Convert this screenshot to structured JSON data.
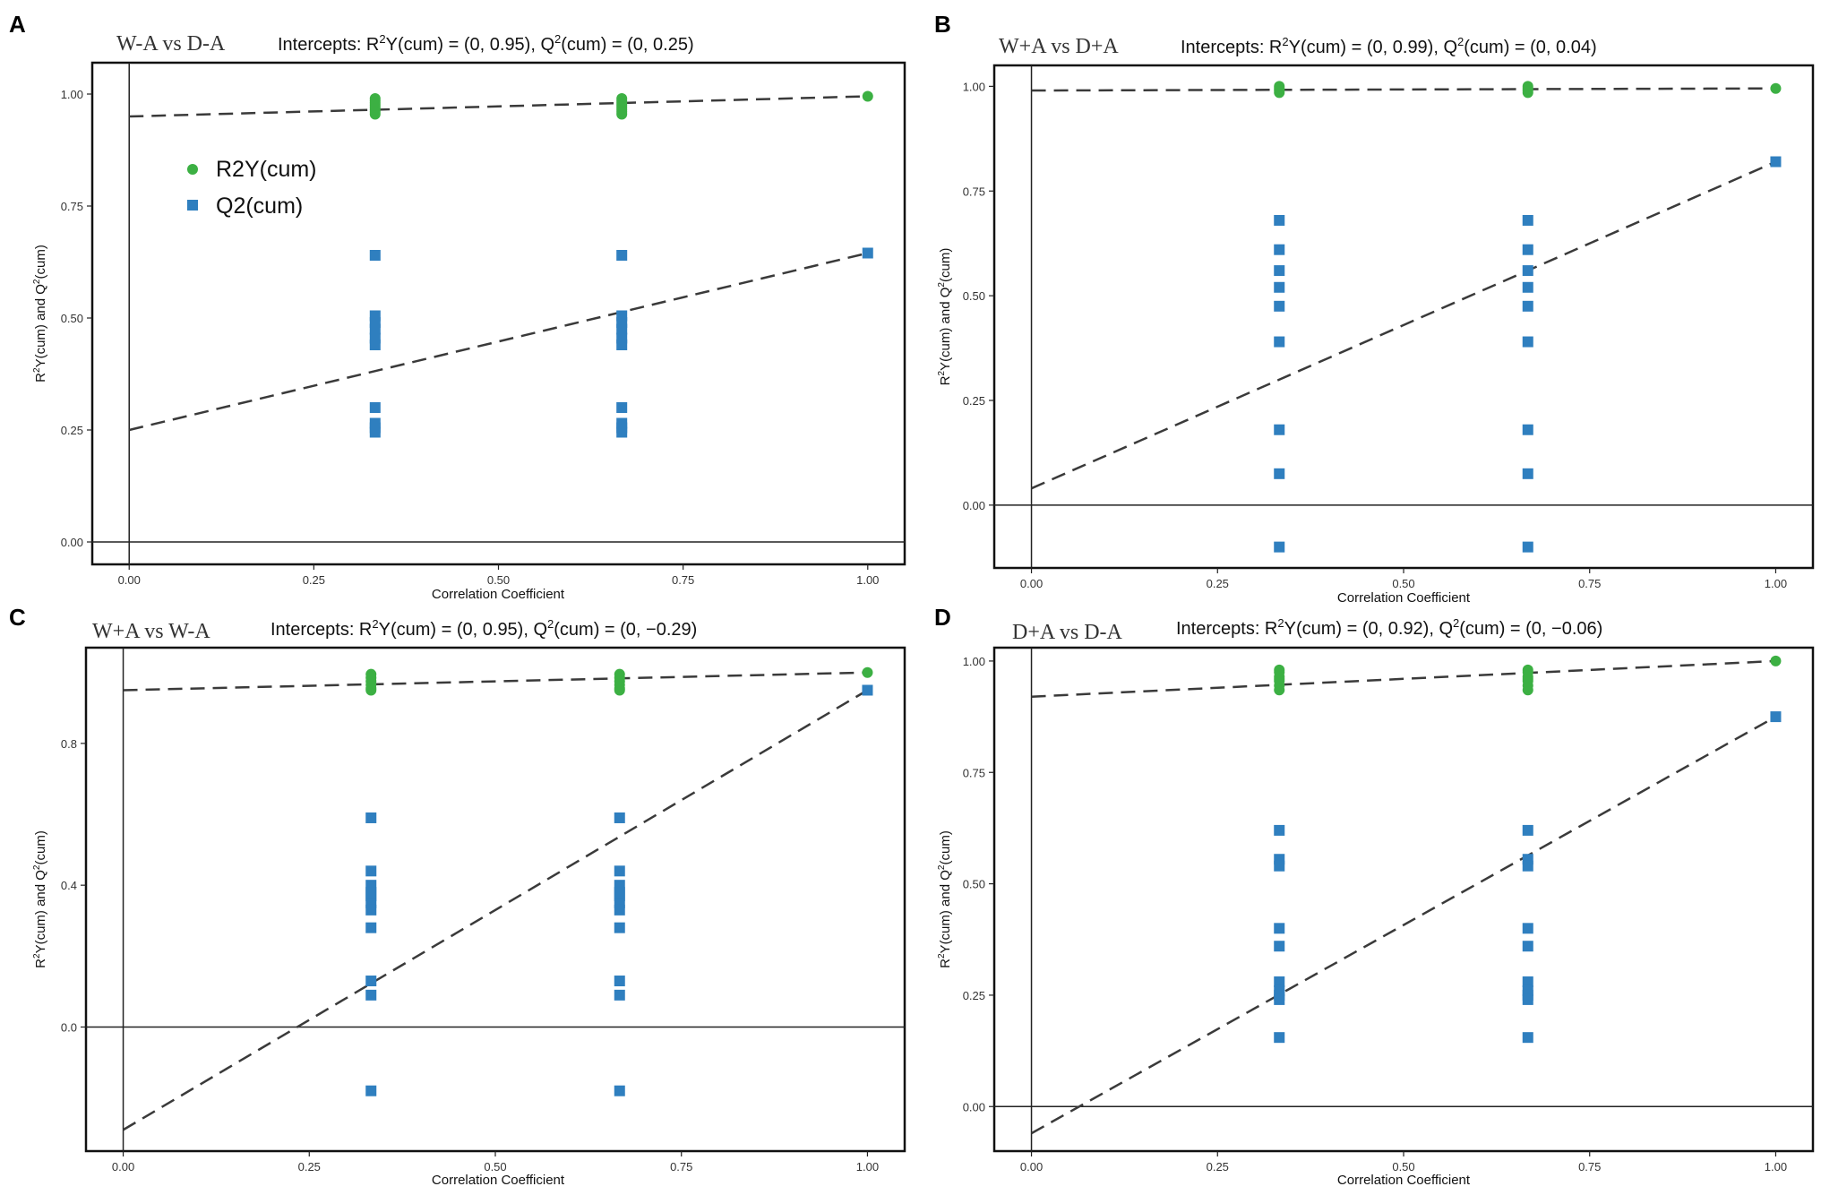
{
  "legend": {
    "r2_label": "R2Y(cum)",
    "q2_label": "Q2(cum)",
    "r2_color": "#3cb043",
    "q2_color": "#2f7fbf"
  },
  "chart_data": [
    {
      "type": "scatter",
      "panel_letter": "A",
      "title": "W-A vs D-A",
      "intercepts_prefix": "Intercepts: R",
      "intercepts_mid": "Y(cum) = (0, 0.95), Q",
      "intercepts_suffix": "(cum) = (0, 0.25)",
      "sup": "2",
      "xlabel": "Correlation Coefficient",
      "ylabel_prefix": "R",
      "ylabel_mid": "Y(cum) and Q",
      "ylabel_suffix": "(cum)",
      "xlim": [
        -0.05,
        1.05
      ],
      "ylim": [
        -0.05,
        1.07
      ],
      "xticks": [
        0,
        0.25,
        0.5,
        0.75,
        1
      ],
      "xtick_labels": [
        "0.00",
        "0.25",
        "0.50",
        "0.75",
        "1.00"
      ],
      "yticks": [
        0,
        0.25,
        0.5,
        0.75,
        1
      ],
      "ytick_labels": [
        "0.00",
        "0.25",
        "0.50",
        "0.75",
        "1.00"
      ],
      "show_legend": true,
      "series": [
        {
          "name": "R2Y(cum)",
          "x": [
            0.333,
            0.333,
            0.333,
            0.333,
            0.333,
            0.333,
            0.333,
            0.333,
            0.667,
            0.667,
            0.667,
            0.667,
            0.667,
            0.667,
            0.667,
            0.667,
            1.0
          ],
          "y": [
            0.955,
            0.96,
            0.965,
            0.97,
            0.975,
            0.98,
            0.985,
            0.99,
            0.955,
            0.96,
            0.965,
            0.97,
            0.975,
            0.98,
            0.985,
            0.99,
            0.995
          ]
        },
        {
          "name": "Q2(cum)",
          "x": [
            0.333,
            0.333,
            0.333,
            0.333,
            0.333,
            0.333,
            0.333,
            0.333,
            0.333,
            0.333,
            0.667,
            0.667,
            0.667,
            0.667,
            0.667,
            0.667,
            0.667,
            0.667,
            0.667,
            0.667,
            1.0
          ],
          "y": [
            0.64,
            0.505,
            0.49,
            0.475,
            0.455,
            0.44,
            0.3,
            0.265,
            0.255,
            0.245,
            0.64,
            0.505,
            0.49,
            0.475,
            0.455,
            0.44,
            0.3,
            0.265,
            0.255,
            0.245,
            0.645
          ]
        }
      ],
      "regression": {
        "r2": [
          0.95,
          0.995
        ],
        "q2": [
          0.25,
          0.645
        ]
      }
    },
    {
      "type": "scatter",
      "panel_letter": "B",
      "title": "W+A vs D+A",
      "intercepts_prefix": "Intercepts: R",
      "intercepts_mid": "Y(cum) = (0, 0.99), Q",
      "intercepts_suffix": "(cum) = (0, 0.04)",
      "sup": "2",
      "xlabel": "Correlation Coefficient",
      "ylabel_prefix": "R",
      "ylabel_mid": "Y(cum) and Q",
      "ylabel_suffix": "(cum)",
      "xlim": [
        -0.05,
        1.05
      ],
      "ylim": [
        -0.15,
        1.05
      ],
      "xticks": [
        0,
        0.25,
        0.5,
        0.75,
        1
      ],
      "xtick_labels": [
        "0.00",
        "0.25",
        "0.50",
        "0.75",
        "1.00"
      ],
      "yticks": [
        0,
        0.25,
        0.5,
        0.75,
        1
      ],
      "ytick_labels": [
        "0.00",
        "0.25",
        "0.50",
        "0.75",
        "1.00"
      ],
      "show_legend": false,
      "series": [
        {
          "name": "R2Y(cum)",
          "x": [
            0.333,
            0.333,
            0.333,
            0.333,
            0.667,
            0.667,
            0.667,
            0.667,
            1.0
          ],
          "y": [
            0.985,
            0.99,
            0.995,
            1.0,
            0.985,
            0.99,
            0.995,
            1.0,
            0.995
          ]
        },
        {
          "name": "Q2(cum)",
          "x": [
            0.333,
            0.333,
            0.333,
            0.333,
            0.333,
            0.333,
            0.333,
            0.333,
            0.333,
            0.667,
            0.667,
            0.667,
            0.667,
            0.667,
            0.667,
            0.667,
            0.667,
            0.667,
            1.0
          ],
          "y": [
            0.68,
            0.61,
            0.56,
            0.52,
            0.475,
            0.39,
            0.18,
            0.075,
            -0.1,
            0.68,
            0.61,
            0.56,
            0.52,
            0.475,
            0.39,
            0.18,
            0.075,
            -0.1,
            0.82
          ]
        }
      ],
      "regression": {
        "r2": [
          0.99,
          0.995
        ],
        "q2": [
          0.04,
          0.82
        ]
      }
    },
    {
      "type": "scatter",
      "panel_letter": "C",
      "title": "W+A vs W-A",
      "intercepts_prefix": "Intercepts: R",
      "intercepts_mid": "Y(cum) = (0, 0.95), Q",
      "intercepts_suffix": "(cum) = (0, −0.29)",
      "sup": "2",
      "xlabel": "Correlation Coefficient",
      "ylabel_prefix": "R",
      "ylabel_mid": "Y(cum) and Q",
      "ylabel_suffix": "(cum)",
      "xlim": [
        -0.05,
        1.05
      ],
      "ylim": [
        -0.35,
        1.07
      ],
      "xticks": [
        0,
        0.25,
        0.5,
        0.75,
        1
      ],
      "xtick_labels": [
        "0.00",
        "0.25",
        "0.50",
        "0.75",
        "1.00"
      ],
      "yticks": [
        0,
        0.4,
        0.8
      ],
      "ytick_labels": [
        "0.0",
        "0.4",
        "0.8"
      ],
      "show_legend": false,
      "series": [
        {
          "name": "R2Y(cum)",
          "x": [
            0.333,
            0.333,
            0.333,
            0.333,
            0.333,
            0.333,
            0.667,
            0.667,
            0.667,
            0.667,
            0.667,
            0.667,
            1.0
          ],
          "y": [
            0.955,
            0.965,
            0.975,
            0.985,
            0.995,
            0.95,
            0.955,
            0.965,
            0.975,
            0.985,
            0.995,
            0.95,
            1.0
          ]
        },
        {
          "name": "Q2(cum)",
          "x": [
            0.333,
            0.333,
            0.333,
            0.333,
            0.333,
            0.333,
            0.333,
            0.333,
            0.333,
            0.333,
            0.333,
            0.667,
            0.667,
            0.667,
            0.667,
            0.667,
            0.667,
            0.667,
            0.667,
            0.667,
            0.667,
            0.667,
            1.0
          ],
          "y": [
            0.59,
            0.44,
            0.4,
            0.37,
            0.35,
            0.33,
            0.28,
            0.13,
            0.09,
            -0.18,
            0.38,
            0.59,
            0.44,
            0.4,
            0.37,
            0.35,
            0.33,
            0.28,
            0.13,
            0.09,
            -0.18,
            0.38,
            0.95
          ]
        }
      ],
      "regression": {
        "r2": [
          0.95,
          1.0
        ],
        "q2": [
          -0.29,
          0.95
        ]
      }
    },
    {
      "type": "scatter",
      "panel_letter": "D",
      "title": "D+A vs D-A",
      "intercepts_prefix": "Intercepts: R",
      "intercepts_mid": "Y(cum) = (0, 0.92), Q",
      "intercepts_suffix": "(cum) = (0, −0.06)",
      "sup": "2",
      "xlabel": "Correlation Coefficient",
      "ylabel_prefix": "R",
      "ylabel_mid": "Y(cum) and Q",
      "ylabel_suffix": "(cum)",
      "xlim": [
        -0.05,
        1.05
      ],
      "ylim": [
        -0.1,
        1.03
      ],
      "xticks": [
        0,
        0.25,
        0.5,
        0.75,
        1
      ],
      "xtick_labels": [
        "0.00",
        "0.25",
        "0.50",
        "0.75",
        "1.00"
      ],
      "yticks": [
        0,
        0.25,
        0.5,
        0.75,
        1
      ],
      "ytick_labels": [
        "0.00",
        "0.25",
        "0.50",
        "0.75",
        "1.00"
      ],
      "show_legend": false,
      "series": [
        {
          "name": "R2Y(cum)",
          "x": [
            0.333,
            0.333,
            0.333,
            0.333,
            0.333,
            0.333,
            0.333,
            0.667,
            0.667,
            0.667,
            0.667,
            0.667,
            0.667,
            0.667,
            1.0
          ],
          "y": [
            0.935,
            0.945,
            0.955,
            0.96,
            0.965,
            0.975,
            0.98,
            0.935,
            0.945,
            0.955,
            0.96,
            0.965,
            0.975,
            0.98,
            1.0
          ]
        },
        {
          "name": "Q2(cum)",
          "x": [
            0.333,
            0.333,
            0.333,
            0.333,
            0.333,
            0.333,
            0.333,
            0.333,
            0.333,
            0.333,
            0.667,
            0.667,
            0.667,
            0.667,
            0.667,
            0.667,
            0.667,
            0.667,
            0.667,
            0.667,
            1.0
          ],
          "y": [
            0.62,
            0.555,
            0.54,
            0.4,
            0.36,
            0.28,
            0.26,
            0.25,
            0.24,
            0.155,
            0.62,
            0.555,
            0.54,
            0.4,
            0.36,
            0.28,
            0.26,
            0.25,
            0.24,
            0.155,
            0.875
          ]
        }
      ],
      "regression": {
        "r2": [
          0.92,
          1.0
        ],
        "q2": [
          -0.06,
          0.875
        ]
      }
    }
  ]
}
